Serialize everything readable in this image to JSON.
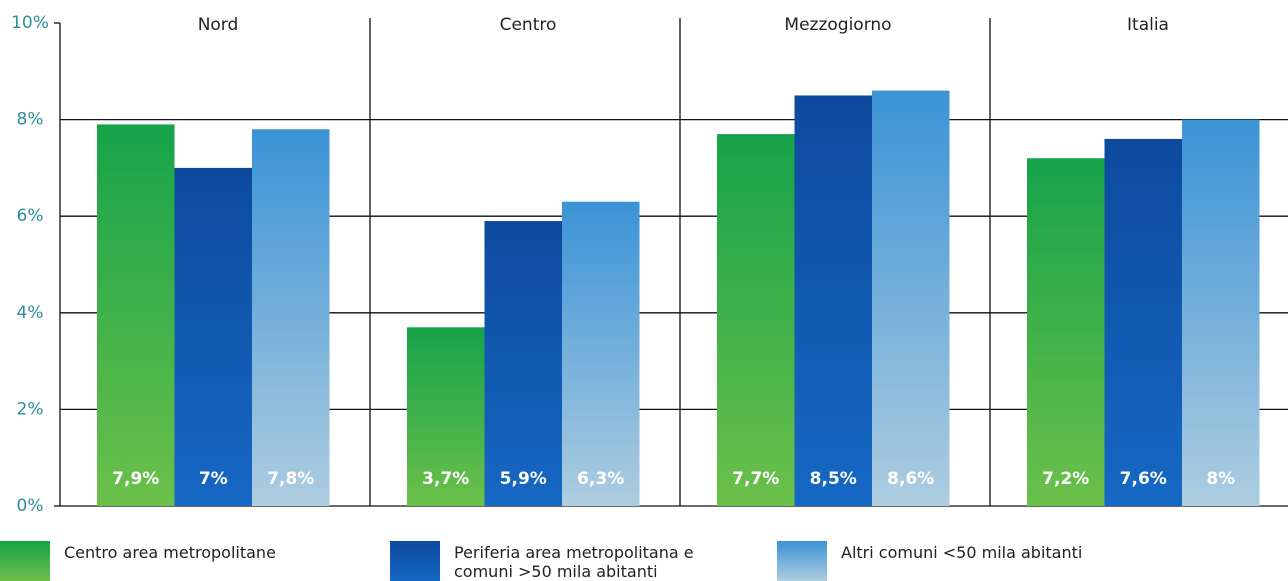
{
  "chart_data": {
    "type": "bar",
    "categories": [
      "Nord",
      "Centro",
      "Mezzogiorno",
      "Italia"
    ],
    "series": [
      {
        "name": "Centro area metropolitane",
        "color": "#16a34a",
        "values": [
          7.9,
          3.7,
          7.7,
          7.2
        ],
        "value_labels": [
          "7,9%",
          "3,7%",
          "7,7%",
          "7,2%"
        ]
      },
      {
        "name": "Periferia area metropolitana e comuni >50 mila abitanti",
        "color": "#0d4a9e",
        "values": [
          7,
          5.9,
          8.5,
          7.6
        ],
        "value_labels": [
          "7%",
          "5,9%",
          "8,5%",
          "7,6%"
        ]
      },
      {
        "name": "Altri comuni <50 mila abitanti",
        "color": "#3b93d6",
        "values": [
          7.8,
          6.3,
          8.6,
          8
        ],
        "value_labels": [
          "7,8%",
          "6,3%",
          "8,6%",
          "8%"
        ]
      }
    ],
    "ylim": [
      0,
      10
    ],
    "yticks": [
      {
        "value": 0,
        "label": "0%"
      },
      {
        "value": 2,
        "label": "2%"
      },
      {
        "value": 4,
        "label": "4%"
      },
      {
        "value": 6,
        "label": "6%"
      },
      {
        "value": 8,
        "label": "8%"
      },
      {
        "value": 10,
        "label": "10%"
      }
    ],
    "grid": true
  }
}
